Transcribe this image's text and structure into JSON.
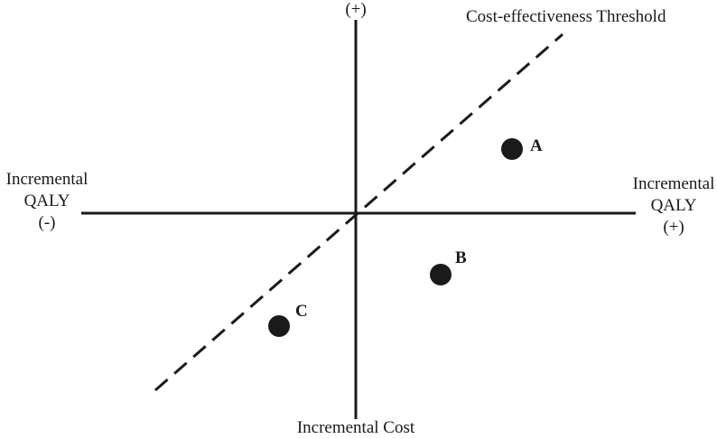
{
  "diagram": {
    "top_axis_label": "(+)",
    "bottom_axis_label": "Incremental Cost",
    "left_axis_label": [
      "Incremental",
      "QALY",
      "(-)"
    ],
    "right_axis_label": [
      "Incremental",
      "QALY",
      "(+)"
    ],
    "threshold_label": "Cost-effectiveness Threshold",
    "points": [
      {
        "id": "A",
        "label": "A"
      },
      {
        "id": "B",
        "label": "B"
      },
      {
        "id": "C",
        "label": "C"
      }
    ],
    "colors": {
      "ink": "#1a1a1a",
      "background": "#ffffff"
    }
  }
}
